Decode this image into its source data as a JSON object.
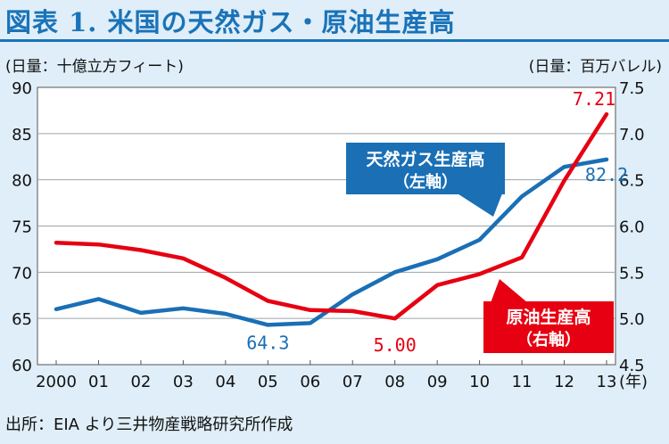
{
  "header": {
    "title": "図表 1. 米国の天然ガス・原油生産高"
  },
  "footer": {
    "source": "出所：EIA より三井物産戦略研究所作成"
  },
  "chart_data": {
    "type": "line",
    "left_axis_unit": "(日量：十億立方フィート)",
    "right_axis_unit": "(日量：百万バレル)",
    "x_ticks": [
      "2000",
      "01",
      "02",
      "03",
      "04",
      "05",
      "06",
      "07",
      "08",
      "09",
      "10",
      "11",
      "12",
      "13"
    ],
    "x_unit_label": "(年)",
    "left_ylim": [
      60,
      90
    ],
    "left_ticks": [
      "60",
      "65",
      "70",
      "75",
      "80",
      "85",
      "90"
    ],
    "right_ylim": [
      4.5,
      7.5
    ],
    "right_ticks": [
      "4.5",
      "5.0",
      "5.5",
      "6.0",
      "6.5",
      "7.0",
      "7.5"
    ],
    "grid": "horizontal",
    "series": [
      {
        "name": "天然ガス生産高",
        "name_sub": "（左軸）",
        "axis": "left",
        "color": "#1a6fb5",
        "values": [
          66.0,
          67.1,
          65.6,
          66.1,
          65.5,
          64.3,
          64.5,
          67.6,
          70.0,
          71.4,
          73.5,
          78.2,
          81.4,
          82.2
        ],
        "annotations": [
          {
            "index": 5,
            "text": "64.3"
          },
          {
            "index": 13,
            "text": "82.2"
          }
        ]
      },
      {
        "name": "原油生産高",
        "name_sub": "（右軸）",
        "axis": "right",
        "color": "#e60012",
        "values": [
          5.82,
          5.8,
          5.74,
          5.65,
          5.44,
          5.19,
          5.09,
          5.08,
          5.0,
          5.36,
          5.48,
          5.66,
          6.49,
          7.21
        ],
        "annotations": [
          {
            "index": 8,
            "text": "5.00"
          },
          {
            "index": 13,
            "text": "7.21"
          }
        ]
      }
    ]
  }
}
